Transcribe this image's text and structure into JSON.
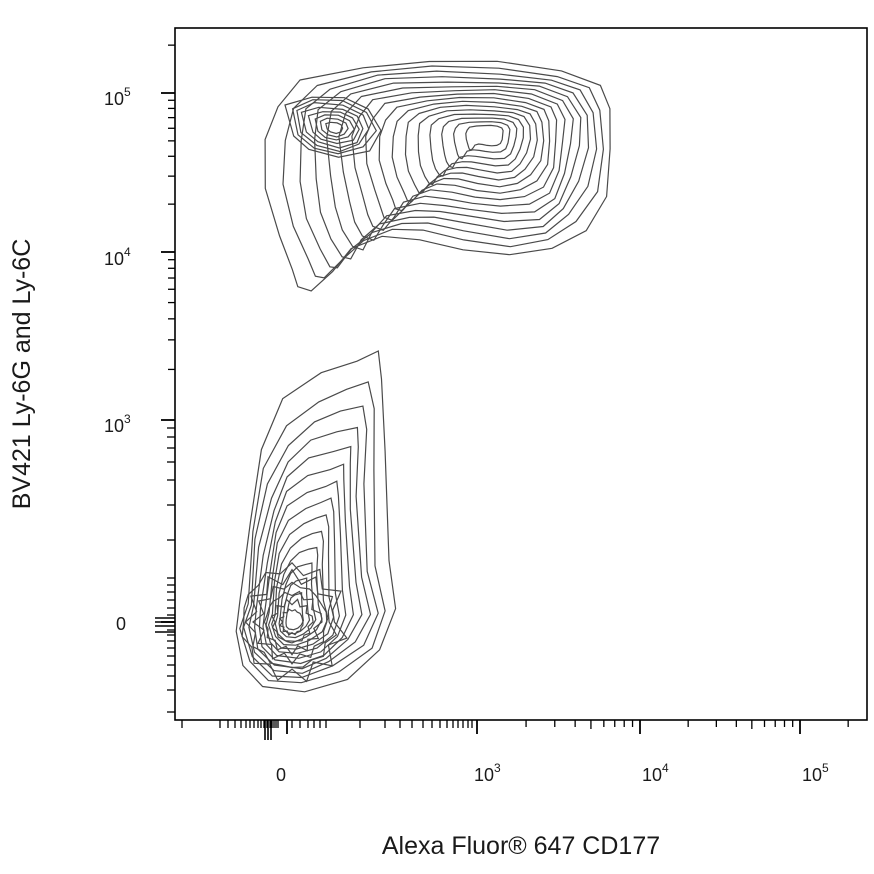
{
  "chart_data": {
    "type": "contour",
    "xlabel": "Alexa Fluor® 647 CD177",
    "ylabel": "BV421 Ly-6G and Ly-6C",
    "x_scale": "biexponential",
    "y_scale": "biexponential",
    "x_ticks": [
      {
        "base": "0",
        "exp": ""
      },
      {
        "base": "10",
        "exp": "3"
      },
      {
        "base": "10",
        "exp": "4"
      },
      {
        "base": "10",
        "exp": "5"
      }
    ],
    "y_ticks": [
      {
        "base": "0",
        "exp": ""
      },
      {
        "base": "10",
        "exp": "3"
      },
      {
        "base": "10",
        "exp": "4"
      },
      {
        "base": "10",
        "exp": "5"
      }
    ],
    "populations": [
      {
        "x_peak": 1300,
        "y_peak": 55000,
        "contour_levels": 16
      },
      {
        "x_peak": 150,
        "y_peak": 60000,
        "contour_levels": 8
      },
      {
        "x_peak": 20,
        "y_peak": 0,
        "contour_levels": 14
      }
    ],
    "colors": {
      "line": "#4a4a4a",
      "axis": "#000000",
      "background": "#ffffff"
    }
  }
}
